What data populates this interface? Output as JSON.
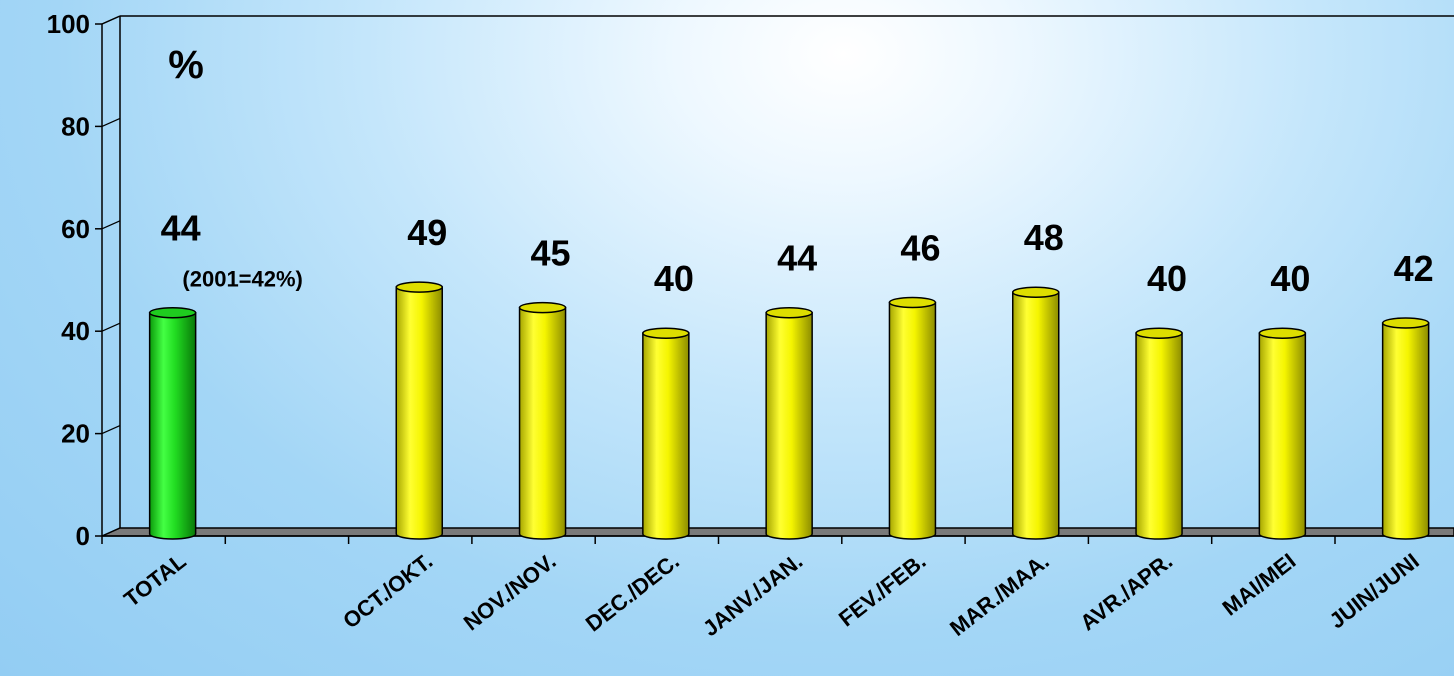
{
  "chart_data": {
    "type": "bar",
    "unit_label": "%",
    "ylim": [
      0,
      100
    ],
    "yticks": [
      "0",
      "20",
      "40",
      "60",
      "80",
      "100"
    ],
    "grid": false,
    "legend": "none",
    "categories": [
      "TOTAL",
      "OCT./OKT.",
      "NOV./NOV.",
      "DEC./DEC.",
      "JANV./JAN.",
      "FEV./FEB.",
      "MAR./MAA.",
      "AVR./APR.",
      "MAI/MEI",
      "JUIN/JUNI"
    ],
    "values": [
      44,
      49,
      45,
      40,
      44,
      46,
      48,
      40,
      40,
      42
    ],
    "data_labels": [
      "44",
      "49",
      "45",
      "40",
      "44",
      "46",
      "48",
      "40",
      "40",
      "42"
    ],
    "annotation": "(2001=42%)",
    "colors": {
      "total_bar": "#22dd22",
      "month_bar": "#f2f200",
      "floor": "#7a7a7a"
    }
  }
}
